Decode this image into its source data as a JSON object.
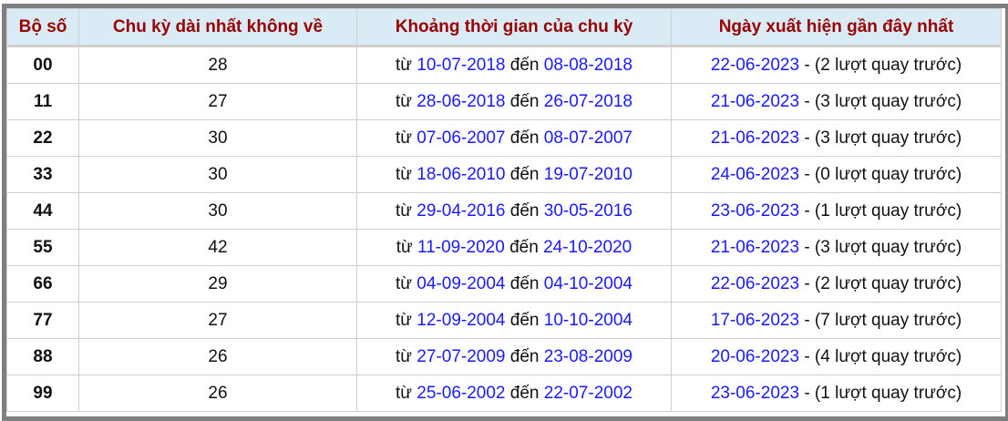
{
  "headers": [
    "Bộ số",
    "Chu kỳ dài nhất không về",
    "Khoảng thời gian của chu kỳ",
    "Ngày xuất hiện gần đây nhất"
  ],
  "labels": {
    "from": "từ",
    "to": "đến",
    "dash": "-"
  },
  "colors": {
    "header_text": "#990000",
    "header_bg": "#d9ebf5",
    "date_link": "#1a1aff",
    "frame": "#7f7f7f"
  },
  "rows": [
    {
      "pair": "00",
      "cycle": "28",
      "start": "10-07-2018",
      "end": "08-08-2018",
      "last": "22-06-2023",
      "ago": "(2 lượt quay trước)"
    },
    {
      "pair": "11",
      "cycle": "27",
      "start": "28-06-2018",
      "end": "26-07-2018",
      "last": "21-06-2023",
      "ago": "(3 lượt quay trước)"
    },
    {
      "pair": "22",
      "cycle": "30",
      "start": "07-06-2007",
      "end": "08-07-2007",
      "last": "21-06-2023",
      "ago": "(3 lượt quay trước)"
    },
    {
      "pair": "33",
      "cycle": "30",
      "start": "18-06-2010",
      "end": "19-07-2010",
      "last": "24-06-2023",
      "ago": "(0 lượt quay trước)"
    },
    {
      "pair": "44",
      "cycle": "30",
      "start": "29-04-2016",
      "end": "30-05-2016",
      "last": "23-06-2023",
      "ago": "(1 lượt quay trước)"
    },
    {
      "pair": "55",
      "cycle": "42",
      "start": "11-09-2020",
      "end": "24-10-2020",
      "last": "21-06-2023",
      "ago": "(3 lượt quay trước)"
    },
    {
      "pair": "66",
      "cycle": "29",
      "start": "04-09-2004",
      "end": "04-10-2004",
      "last": "22-06-2023",
      "ago": "(2 lượt quay trước)"
    },
    {
      "pair": "77",
      "cycle": "27",
      "start": "12-09-2004",
      "end": "10-10-2004",
      "last": "17-06-2023",
      "ago": "(7 lượt quay trước)"
    },
    {
      "pair": "88",
      "cycle": "26",
      "start": "27-07-2009",
      "end": "23-08-2009",
      "last": "20-06-2023",
      "ago": "(4 lượt quay trước)"
    },
    {
      "pair": "99",
      "cycle": "26",
      "start": "25-06-2002",
      "end": "22-07-2002",
      "last": "23-06-2023",
      "ago": "(1 lượt quay trước)"
    }
  ]
}
